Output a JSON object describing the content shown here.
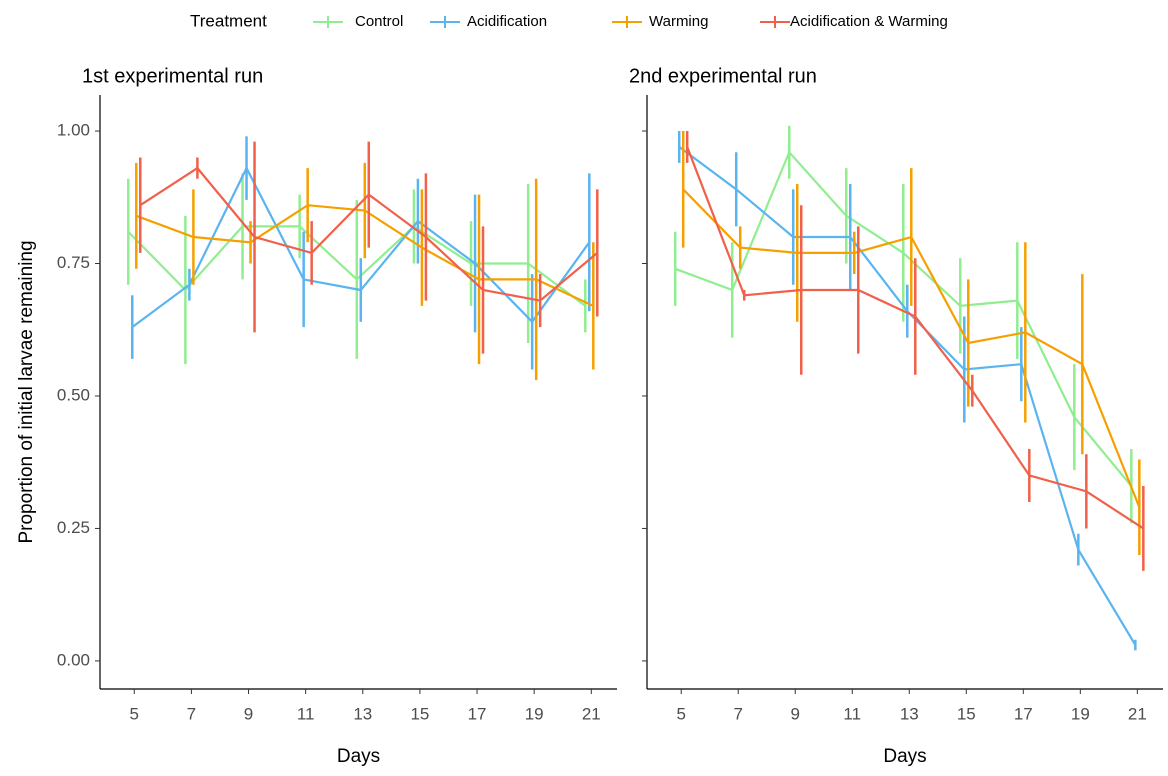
{
  "legend": {
    "title": "Treatment"
  },
  "y_axis_label": "Proportion of initial larvae remaining",
  "chart_data": [
    {
      "type": "line",
      "title": "1st experimental run",
      "x_label": "Days",
      "x": [
        5,
        7,
        9,
        11,
        13,
        15,
        17,
        19,
        21
      ],
      "xlim": [
        3.8,
        21.9
      ],
      "xticks": [
        5,
        7,
        9,
        11,
        13,
        15,
        17,
        19,
        21
      ],
      "ylim": [
        -0.053,
        1.068
      ],
      "yticks": [
        {
          "value": 0,
          "label": "0.00"
        },
        {
          "value": 0.25,
          "label": "0.25"
        },
        {
          "value": 0.5,
          "label": "0.50"
        },
        {
          "value": 0.75,
          "label": "0.75"
        },
        {
          "value": 1,
          "label": "1.00"
        }
      ],
      "series": [
        {
          "name": "Control",
          "color": "#90ee90",
          "values": [
            0.81,
            0.7,
            0.82,
            0.82,
            0.72,
            0.82,
            0.75,
            0.75,
            0.67
          ],
          "errors": [
            0.1,
            0.14,
            0.1,
            0.06,
            0.15,
            0.07,
            0.08,
            0.15,
            0.05
          ]
        },
        {
          "name": "Acidification",
          "color": "#5ab4f0",
          "values": [
            0.63,
            0.71,
            0.93,
            0.72,
            0.7,
            0.83,
            0.75,
            0.64,
            0.79
          ],
          "errors": [
            0.06,
            0.03,
            0.06,
            0.09,
            0.06,
            0.08,
            0.13,
            0.09,
            0.13
          ]
        },
        {
          "name": "Warming",
          "color": "#f5a000",
          "values": [
            0.84,
            0.8,
            0.79,
            0.86,
            0.85,
            0.78,
            0.72,
            0.72,
            0.67
          ],
          "errors": [
            0.1,
            0.09,
            0.04,
            0.07,
            0.09,
            0.11,
            0.16,
            0.19,
            0.12
          ]
        },
        {
          "name": "Acidification & Warming",
          "color": "#f0604a",
          "values": [
            0.86,
            0.93,
            0.8,
            0.77,
            0.88,
            0.8,
            0.7,
            0.68,
            0.77
          ],
          "errors": [
            0.09,
            0.02,
            0.18,
            0.06,
            0.1,
            0.12,
            0.12,
            0.05,
            0.12
          ]
        }
      ]
    },
    {
      "type": "line",
      "title": "2nd experimental run",
      "x_label": "Days",
      "x": [
        5,
        7,
        9,
        11,
        13,
        15,
        17,
        19,
        21
      ],
      "xlim": [
        3.8,
        21.9
      ],
      "xticks": [
        5,
        7,
        9,
        11,
        13,
        15,
        17,
        19,
        21
      ],
      "ylim": [
        -0.053,
        1.068
      ],
      "yticks": [
        0,
        0.25,
        0.5,
        0.75,
        1
      ],
      "series": [
        {
          "name": "Control",
          "color": "#90ee90",
          "values": [
            0.74,
            0.7,
            0.96,
            0.84,
            0.77,
            0.67,
            0.68,
            0.46,
            0.33
          ],
          "errors": [
            0.07,
            0.09,
            0.05,
            0.09,
            0.13,
            0.09,
            0.11,
            0.1,
            0.07
          ]
        },
        {
          "name": "Acidification",
          "color": "#5ab4f0",
          "values": [
            0.97,
            0.89,
            0.8,
            0.8,
            0.66,
            0.55,
            0.56,
            0.21,
            0.03
          ],
          "errors": [
            0.03,
            0.07,
            0.09,
            0.1,
            0.05,
            0.1,
            0.07,
            0.03,
            0.01
          ]
        },
        {
          "name": "Warming",
          "color": "#f5a000",
          "values": [
            0.89,
            0.78,
            0.77,
            0.77,
            0.8,
            0.6,
            0.62,
            0.56,
            0.29
          ],
          "errors": [
            0.11,
            0.04,
            0.13,
            0.04,
            0.13,
            0.12,
            0.17,
            0.17,
            0.09
          ]
        },
        {
          "name": "Acidification & Warming",
          "color": "#f0604a",
          "values": [
            0.97,
            0.69,
            0.7,
            0.7,
            0.65,
            0.51,
            0.35,
            0.32,
            0.25
          ],
          "errors": [
            0.03,
            0.01,
            0.16,
            0.12,
            0.11,
            0.03,
            0.05,
            0.07,
            0.08
          ]
        }
      ]
    }
  ]
}
